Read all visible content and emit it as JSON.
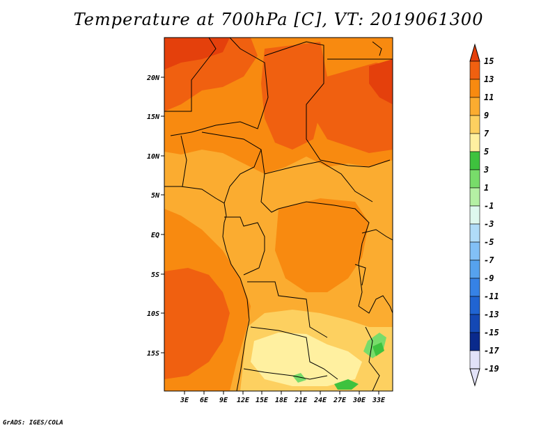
{
  "title": "Temperature at 700hPa [C], VT: 2019061300",
  "credit": "GrADS: IGES/COLA",
  "map": {
    "projection": "latlon",
    "lon_range": [
      -1,
      35
    ],
    "lat_range": [
      -20,
      25
    ],
    "lon_ticks": [
      "3E",
      "6E",
      "9E",
      "12E",
      "15E",
      "18E",
      "21E",
      "24E",
      "27E",
      "30E",
      "33E"
    ],
    "lat_ticks": [
      "20N",
      "15N",
      "10N",
      "5N",
      "EQ",
      "5S",
      "10S",
      "15S"
    ]
  },
  "colorbar": {
    "labels": [
      "15",
      "13",
      "11",
      "9",
      "7",
      "5",
      "3",
      "1",
      "-1",
      "-3",
      "-5",
      "-7",
      "-9",
      "-11",
      "-13",
      "-15",
      "-17",
      "-19"
    ],
    "colors": [
      "#e4400c",
      "#f06010",
      "#f88a10",
      "#fbac30",
      "#fdd060",
      "#fff0a0",
      "#3ec23e",
      "#78dc6a",
      "#b4f0a4",
      "#def8ee",
      "#b0dcf8",
      "#82c0f6",
      "#56a2ee",
      "#3682e6",
      "#2064d2",
      "#1448b4",
      "#0a2a8c",
      "#e2e2f8"
    ]
  }
}
